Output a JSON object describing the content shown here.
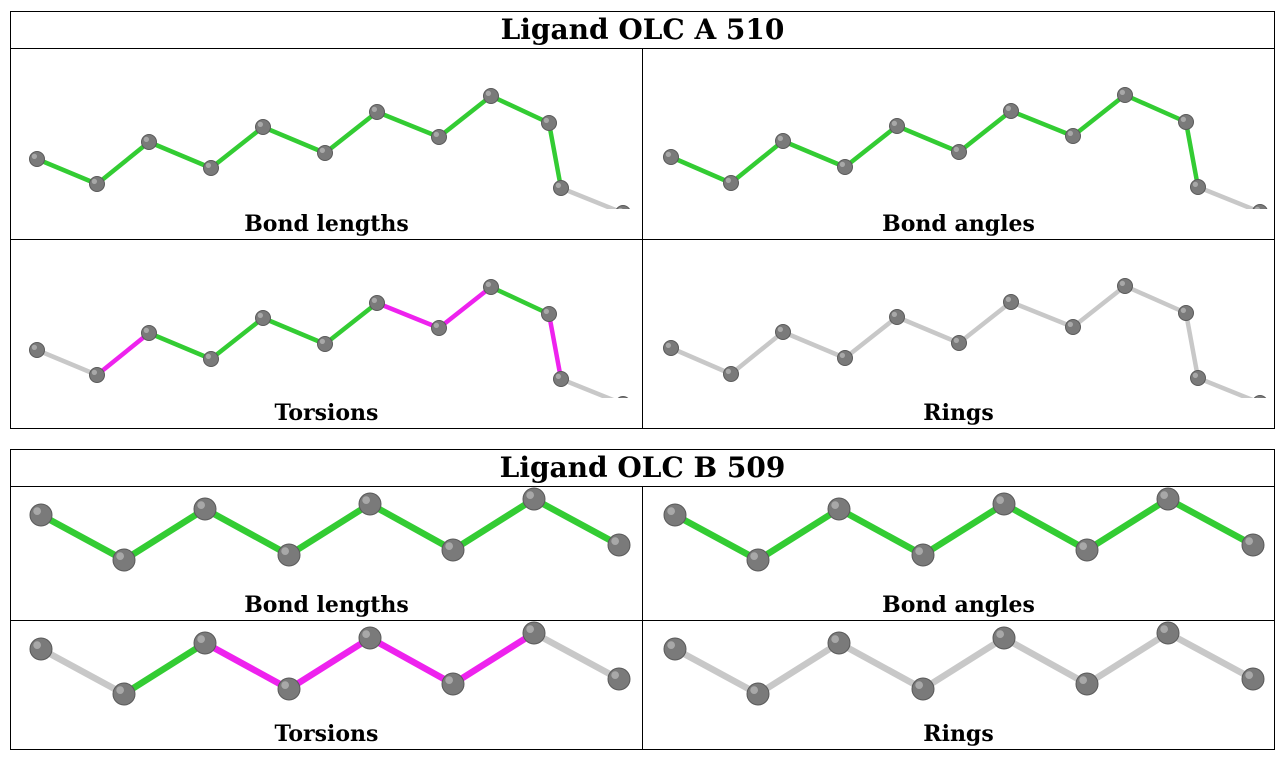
{
  "ligands": [
    {
      "title": "Ligand OLC A 510",
      "panels": [
        {
          "caption": "Bond lengths",
          "bond_colors": [
            "green",
            "green",
            "green",
            "green",
            "green",
            "green",
            "green",
            "green",
            "green",
            "green"
          ]
        },
        {
          "caption": "Bond angles",
          "bond_colors": [
            "green",
            "green",
            "green",
            "green",
            "green",
            "green",
            "green",
            "green",
            "green",
            "green"
          ]
        },
        {
          "caption": "Torsions",
          "bond_colors": [
            "grey",
            "magenta",
            "green",
            "green",
            "green",
            "green",
            "magenta",
            "magenta",
            "green",
            "magenta",
            "grey"
          ]
        },
        {
          "caption": "Rings",
          "bond_colors": [
            "grey",
            "grey",
            "grey",
            "grey",
            "grey",
            "grey",
            "grey",
            "grey",
            "grey",
            "grey"
          ]
        }
      ]
    },
    {
      "title": "Ligand OLC B 509",
      "panels": [
        {
          "caption": "Bond lengths",
          "bond_colors": [
            "green",
            "green",
            "green",
            "green",
            "green",
            "green",
            "green"
          ]
        },
        {
          "caption": "Bond angles",
          "bond_colors": [
            "green",
            "green",
            "green",
            "green",
            "green",
            "green",
            "green"
          ]
        },
        {
          "caption": "Torsions",
          "bond_colors": [
            "grey",
            "green",
            "magenta",
            "magenta",
            "magenta",
            "magenta",
            "grey"
          ]
        },
        {
          "caption": "Rings",
          "bond_colors": [
            "grey",
            "grey",
            "grey",
            "grey",
            "grey",
            "grey",
            "grey"
          ]
        }
      ]
    }
  ],
  "colors": {
    "green": "#33cc33",
    "magenta": "#ee22ee",
    "grey": "#c8c8c8",
    "atom": "#7a7a7a"
  }
}
